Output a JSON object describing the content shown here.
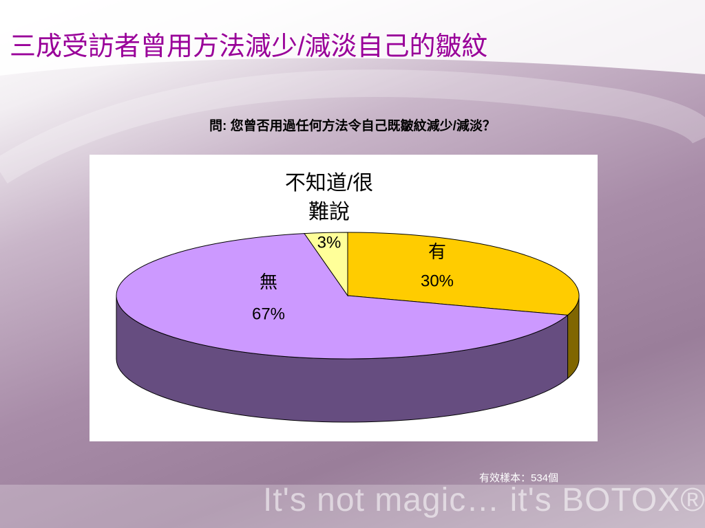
{
  "chart_data": {
    "type": "pie",
    "title": "三成受訪者曾用方法減少/減淡自己的皺紋",
    "subtitle": "問: 您曾否用過任何方法令自己既皺紋減少/減淡？",
    "categories": [
      "有",
      "無",
      "不知道/很難說"
    ],
    "values": [
      30,
      67,
      3
    ],
    "value_labels": [
      "30%",
      "67%",
      "3%"
    ],
    "colors": [
      "#ffcc00",
      "#cc99ff",
      "#ffff99"
    ],
    "note": "有效樣本：534個",
    "footer": "It's not magic… it's BOTOX®"
  }
}
